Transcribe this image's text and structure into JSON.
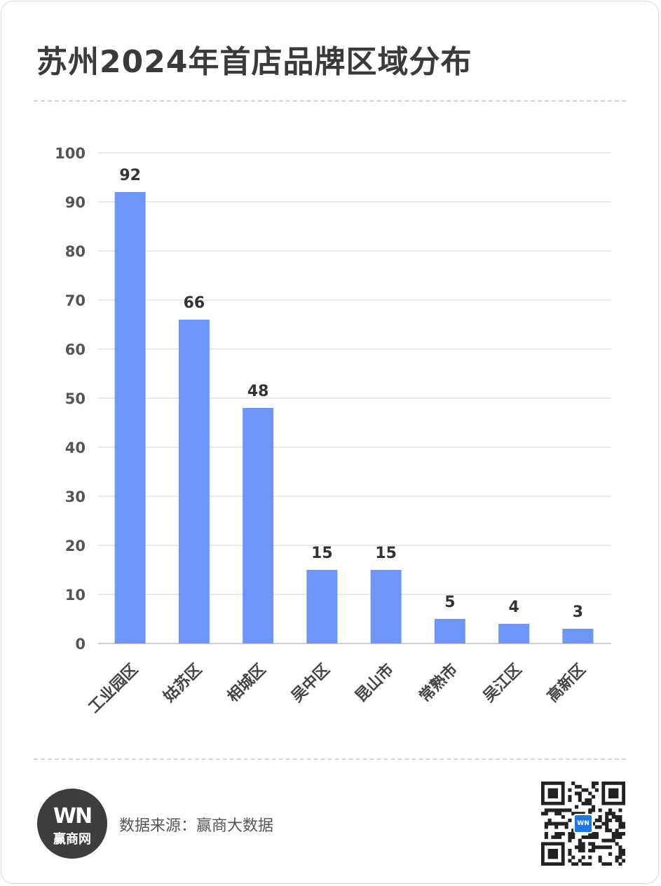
{
  "title": "苏州2024年首店品牌区域分布",
  "colors": {
    "bar": "#6d95fc",
    "grid": "#dddddd",
    "text": "#3a3a3a"
  },
  "chart_data": {
    "type": "bar",
    "title": "苏州2024年首店品牌区域分布",
    "xlabel": "",
    "ylabel": "",
    "categories": [
      "工业园区",
      "姑苏区",
      "相城区",
      "吴中区",
      "昆山市",
      "常熟市",
      "吴江区",
      "高新区"
    ],
    "values": [
      92,
      66,
      48,
      15,
      15,
      5,
      4,
      3
    ],
    "ylim": [
      0,
      100
    ],
    "yticks": [
      0,
      10,
      20,
      30,
      40,
      50,
      60,
      70,
      80,
      90,
      100
    ],
    "grid": true,
    "legend": "none"
  },
  "footer": {
    "logo_mark": "WN",
    "logo_text": "赢商网",
    "source": "数据来源：赢商大数据",
    "qr_icon": "qr-code-icon",
    "qr_center_text": "WN"
  }
}
